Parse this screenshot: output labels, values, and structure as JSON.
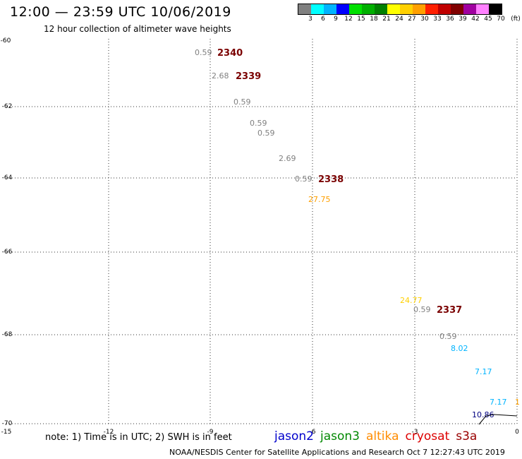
{
  "header": {
    "title": "12:00 — 23:59 UTC 10/06/2019",
    "subtitle": "12 hour collection of altimeter wave heights"
  },
  "scale": {
    "colors": [
      "#808080",
      "#00ffff",
      "#00b4ff",
      "#0000ff",
      "#00e000",
      "#00b000",
      "#008000",
      "#ffff00",
      "#ffd000",
      "#ffa000",
      "#ff2000",
      "#c00000",
      "#800000",
      "#a000a0",
      "#ff80ff",
      "#000000"
    ],
    "labels": [
      "3",
      "6",
      "9",
      "12",
      "15",
      "18",
      "21",
      "24",
      "27",
      "30",
      "33",
      "36",
      "39",
      "42",
      "45",
      "70",
      "(ft)"
    ]
  },
  "map": {
    "lat_labels": [
      "-60",
      "-62",
      "-64",
      "-66",
      "-68",
      "-70"
    ],
    "lon_labels": [
      "-15",
      "-12",
      "-9",
      "-6",
      "-3",
      "0"
    ],
    "observations": [
      {
        "text": "0.59",
        "color": "#808080"
      },
      {
        "text": "2.68",
        "color": "#808080"
      },
      {
        "text": "0.59",
        "color": "#808080"
      },
      {
        "text": "0.59",
        "color": "#808080"
      },
      {
        "text": "0.59",
        "color": "#808080"
      },
      {
        "text": "2.69",
        "color": "#808080"
      },
      {
        "text": "0.59",
        "color": "#808080"
      },
      {
        "text": "27.75",
        "color": "#ffa000"
      },
      {
        "text": "24.77",
        "color": "#ffd000"
      },
      {
        "text": "0.59",
        "color": "#808080"
      },
      {
        "text": "0.59",
        "color": "#808080"
      },
      {
        "text": "8.02",
        "color": "#00b4ff"
      },
      {
        "text": "7.17",
        "color": "#00b4ff"
      },
      {
        "text": "7.17",
        "color": "#00b4ff"
      },
      {
        "text": "10.86",
        "color": "#000080"
      },
      {
        "text": "1",
        "color": "#ffa000"
      }
    ],
    "orbits": [
      "2340",
      "2339",
      "2338",
      "2337"
    ]
  },
  "note": "note: 1) Time is in UTC; 2) SWH is in feet",
  "legend": [
    {
      "label": "jason2",
      "color": "#0000cc"
    },
    {
      "label": "jason3",
      "color": "#008800"
    },
    {
      "label": "altika",
      "color": "#ff8c00"
    },
    {
      "label": "cryosat",
      "color": "#dd0000"
    },
    {
      "label": "s3a",
      "color": "#990000"
    }
  ],
  "footer": "NOAA/NESDIS Center for Satellite Applications and Research   Oct  7 12:27:43 UTC 2019"
}
